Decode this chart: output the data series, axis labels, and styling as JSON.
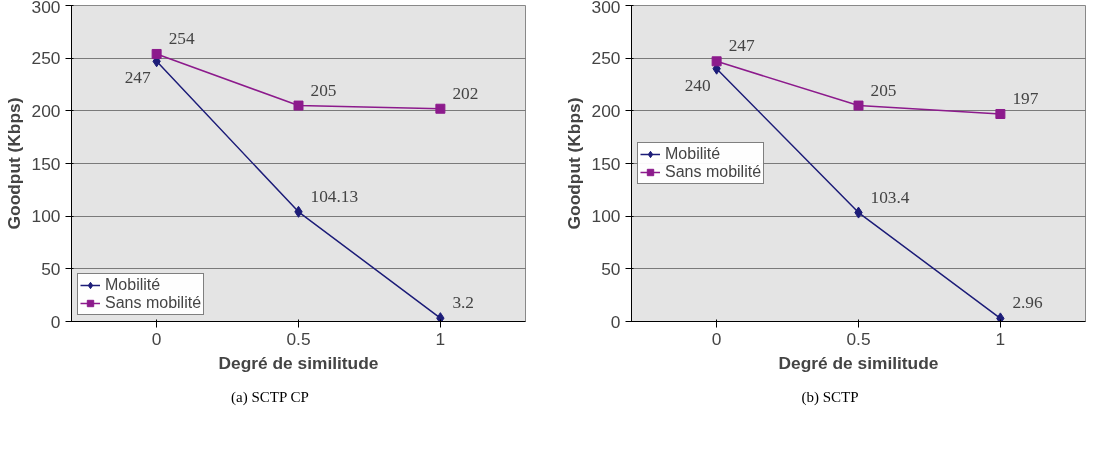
{
  "chart_data": [
    {
      "type": "line",
      "xlabel": "Degré de similitude",
      "ylabel": "Goodput (Kbps)",
      "categories": [
        "0",
        "0.5",
        "1"
      ],
      "ylim": [
        0,
        300
      ],
      "yticks": [
        0,
        50,
        100,
        150,
        200,
        250,
        300
      ],
      "grid": "y",
      "legend": "bottom left",
      "data_labels": true,
      "annotations": [
        "(a) SCTP CP"
      ],
      "series": [
        {
          "name": "Mobilité",
          "color": "#1c1c78",
          "marker": "diamond",
          "values": [
            247,
            104.13,
            3.2
          ]
        },
        {
          "name": "Sans mobilité",
          "color": "#8c1a8c",
          "marker": "square",
          "values": [
            254,
            205,
            202
          ]
        }
      ]
    },
    {
      "type": "line",
      "xlabel": "Degré de similitude",
      "ylabel": "Goodput (Kbps)",
      "categories": [
        "0",
        "0.5",
        "1"
      ],
      "ylim": [
        0,
        300
      ],
      "yticks": [
        0,
        50,
        100,
        150,
        200,
        250,
        300
      ],
      "grid": "y",
      "legend": "left",
      "data_labels": true,
      "annotations": [
        "(b) SCTP"
      ],
      "series": [
        {
          "name": "Mobilité",
          "color": "#1c1c78",
          "marker": "diamond",
          "values": [
            240,
            103.4,
            2.96
          ]
        },
        {
          "name": "Sans mobilité",
          "color": "#8c1a8c",
          "marker": "square",
          "values": [
            247,
            205,
            197
          ]
        }
      ]
    }
  ]
}
